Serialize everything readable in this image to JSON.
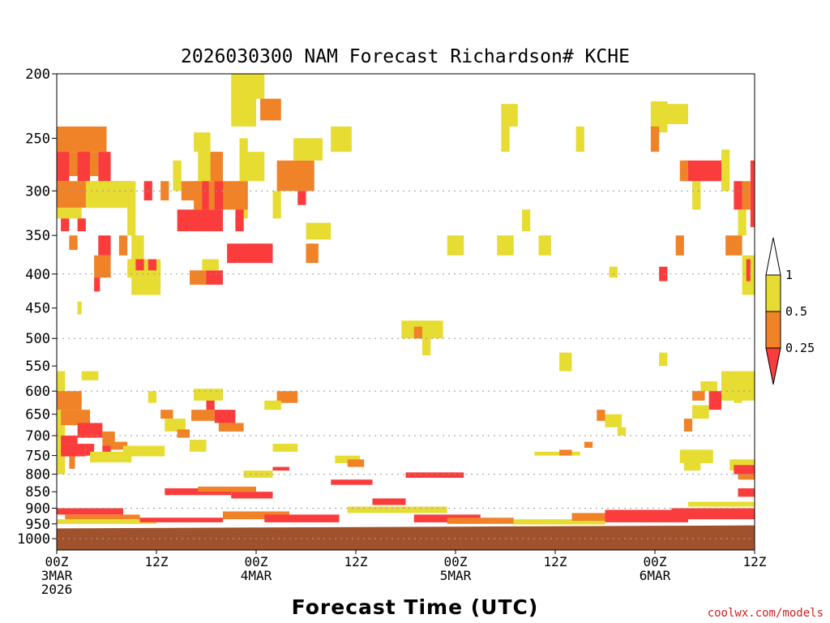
{
  "chart_data": {
    "type": "heatmap",
    "title": "2026030300 NAM Forecast Richardson# KCHE",
    "xlabel": "Forecast Time (UTC)",
    "credit": "coolwx.com/models",
    "ylabel": "",
    "x_range_hours": [
      0,
      84
    ],
    "y_range_hpa": [
      200,
      1040
    ],
    "y_scale": "log-pressure",
    "x_ticks": [
      {
        "hour": 0,
        "lines": [
          "00Z",
          "3MAR",
          "2026"
        ]
      },
      {
        "hour": 12,
        "lines": [
          "12Z"
        ]
      },
      {
        "hour": 24,
        "lines": [
          "00Z",
          "4MAR"
        ]
      },
      {
        "hour": 36,
        "lines": [
          "12Z"
        ]
      },
      {
        "hour": 48,
        "lines": [
          "00Z",
          "5MAR"
        ]
      },
      {
        "hour": 60,
        "lines": [
          "12Z"
        ]
      },
      {
        "hour": 72,
        "lines": [
          "00Z",
          "6MAR"
        ]
      },
      {
        "hour": 84,
        "lines": [
          "12Z"
        ]
      }
    ],
    "y_ticks": [
      200,
      250,
      300,
      350,
      400,
      450,
      500,
      550,
      600,
      650,
      700,
      750,
      800,
      850,
      900,
      950,
      1000
    ],
    "dotted_gridlines_hpa": [
      300,
      400,
      500,
      600,
      700,
      800,
      900,
      1000
    ],
    "legend": {
      "labels": [
        "1",
        "0.5",
        "0.25"
      ],
      "bins": [
        {
          "label": "> 1",
          "color": "#ffffff"
        },
        {
          "label": "0.5 - 1",
          "color": "#e6dc32"
        },
        {
          "label": "0.25 - 0.5",
          "color": "#f08228"
        },
        {
          "label": "< 0.25",
          "color": "#fa3c3c"
        }
      ]
    },
    "ground": {
      "color": "#a0522d",
      "top_hpa_start": 965,
      "top_hpa_end": 955
    },
    "colors": {
      "yellow": "#e6dc32",
      "orange": "#f08228",
      "red": "#fa3c3c"
    },
    "cells": [
      {
        "t0": 0,
        "t1": 6,
        "p0": 240,
        "p1": 262,
        "c": "orange"
      },
      {
        "t0": 0,
        "t1": 5,
        "p0": 262,
        "p1": 285,
        "c": "orange"
      },
      {
        "t0": 0,
        "t1": 1.5,
        "p0": 262,
        "p1": 290,
        "c": "red"
      },
      {
        "t0": 2.5,
        "t1": 4,
        "p0": 262,
        "p1": 290,
        "c": "red"
      },
      {
        "t0": 5,
        "t1": 6.5,
        "p0": 262,
        "p1": 290,
        "c": "red"
      },
      {
        "t0": 0,
        "t1": 9,
        "p0": 290,
        "p1": 318,
        "c": "orange"
      },
      {
        "t0": 3.5,
        "t1": 9,
        "p0": 290,
        "p1": 318,
        "c": "yellow"
      },
      {
        "t0": 8.5,
        "t1": 9.5,
        "p0": 290,
        "p1": 350,
        "c": "yellow"
      },
      {
        "t0": 0,
        "t1": 3,
        "p0": 318,
        "p1": 330,
        "c": "yellow"
      },
      {
        "t0": 0.5,
        "t1": 1.5,
        "p0": 330,
        "p1": 345,
        "c": "red"
      },
      {
        "t0": 2.5,
        "t1": 3.5,
        "p0": 330,
        "p1": 345,
        "c": "red"
      },
      {
        "t0": 1.5,
        "t1": 2.5,
        "p0": 350,
        "p1": 368,
        "c": "orange"
      },
      {
        "t0": 5,
        "t1": 6.5,
        "p0": 350,
        "p1": 375,
        "c": "red"
      },
      {
        "t0": 7.5,
        "t1": 8.5,
        "p0": 350,
        "p1": 375,
        "c": "orange"
      },
      {
        "t0": 9,
        "t1": 10.5,
        "p0": 350,
        "p1": 380,
        "c": "yellow"
      },
      {
        "t0": 4.5,
        "t1": 6.5,
        "p0": 375,
        "p1": 405,
        "c": "orange"
      },
      {
        "t0": 4.5,
        "t1": 5.2,
        "p0": 405,
        "p1": 425,
        "c": "red"
      },
      {
        "t0": 8.5,
        "t1": 12.5,
        "p0": 380,
        "p1": 405,
        "c": "yellow"
      },
      {
        "t0": 9.5,
        "t1": 10.5,
        "p0": 380,
        "p1": 395,
        "c": "red"
      },
      {
        "t0": 11,
        "t1": 12,
        "p0": 380,
        "p1": 395,
        "c": "red"
      },
      {
        "t0": 9,
        "t1": 12.5,
        "p0": 405,
        "p1": 430,
        "c": "yellow"
      },
      {
        "t0": 2.5,
        "t1": 3,
        "p0": 440,
        "p1": 460,
        "c": "yellow"
      },
      {
        "t0": 14,
        "t1": 15,
        "p0": 270,
        "p1": 300,
        "c": "yellow"
      },
      {
        "t0": 15,
        "t1": 17,
        "p0": 290,
        "p1": 310,
        "c": "orange"
      },
      {
        "t0": 10.5,
        "t1": 11.5,
        "p0": 290,
        "p1": 310,
        "c": "red"
      },
      {
        "t0": 12.5,
        "t1": 13.5,
        "p0": 290,
        "p1": 310,
        "c": "orange"
      },
      {
        "t0": 14.5,
        "t1": 20,
        "p0": 320,
        "p1": 345,
        "c": "red"
      },
      {
        "t0": 16.5,
        "t1": 19.5,
        "p0": 290,
        "p1": 320,
        "c": "orange"
      },
      {
        "t0": 17,
        "t1": 20,
        "p0": 262,
        "p1": 290,
        "c": "yellow"
      },
      {
        "t0": 18.5,
        "t1": 20,
        "p0": 262,
        "p1": 290,
        "c": "orange"
      },
      {
        "t0": 17.5,
        "t1": 18.3,
        "p0": 290,
        "p1": 320,
        "c": "red"
      },
      {
        "t0": 19,
        "t1": 20,
        "p0": 290,
        "p1": 320,
        "c": "red"
      },
      {
        "t0": 16.5,
        "t1": 18.5,
        "p0": 245,
        "p1": 262,
        "c": "yellow"
      },
      {
        "t0": 22,
        "t1": 23,
        "p0": 250,
        "p1": 330,
        "c": "yellow"
      },
      {
        "t0": 20,
        "t1": 23,
        "p0": 290,
        "p1": 320,
        "c": "orange"
      },
      {
        "t0": 21.5,
        "t1": 22.5,
        "p0": 320,
        "p1": 345,
        "c": "red"
      },
      {
        "t0": 20.5,
        "t1": 26,
        "p0": 360,
        "p1": 385,
        "c": "red"
      },
      {
        "t0": 22,
        "t1": 25,
        "p0": 262,
        "p1": 290,
        "c": "yellow"
      },
      {
        "t0": 16,
        "t1": 18,
        "p0": 395,
        "p1": 415,
        "c": "orange"
      },
      {
        "t0": 18,
        "t1": 20,
        "p0": 395,
        "p1": 415,
        "c": "red"
      },
      {
        "t0": 17.5,
        "t1": 19.5,
        "p0": 380,
        "p1": 395,
        "c": "yellow"
      },
      {
        "t0": 23,
        "t1": 25,
        "p0": 200,
        "p1": 218,
        "c": "yellow"
      },
      {
        "t0": 24.5,
        "t1": 27,
        "p0": 218,
        "p1": 235,
        "c": "orange"
      },
      {
        "t0": 26.5,
        "t1": 31,
        "p0": 270,
        "p1": 300,
        "c": "orange"
      },
      {
        "t0": 26,
        "t1": 27,
        "p0": 300,
        "p1": 330,
        "c": "yellow"
      },
      {
        "t0": 28.5,
        "t1": 32,
        "p0": 250,
        "p1": 270,
        "c": "yellow"
      },
      {
        "t0": 29,
        "t1": 30,
        "p0": 300,
        "p1": 315,
        "c": "red"
      },
      {
        "t0": 30,
        "t1": 33,
        "p0": 335,
        "p1": 355,
        "c": "yellow"
      },
      {
        "t0": 30,
        "t1": 31.5,
        "p0": 360,
        "p1": 385,
        "c": "orange"
      },
      {
        "t0": 33,
        "t1": 35.5,
        "p0": 240,
        "p1": 262,
        "c": "yellow"
      },
      {
        "t0": 21,
        "t1": 24,
        "p0": 200,
        "p1": 240,
        "c": "yellow"
      },
      {
        "t0": 3,
        "t1": 5,
        "p0": 560,
        "p1": 578,
        "c": "yellow"
      },
      {
        "t0": 0,
        "t1": 1,
        "p0": 560,
        "p1": 800,
        "c": "yellow"
      },
      {
        "t0": 0,
        "t1": 3,
        "p0": 600,
        "p1": 640,
        "c": "orange"
      },
      {
        "t0": 0.5,
        "t1": 4,
        "p0": 640,
        "p1": 675,
        "c": "orange"
      },
      {
        "t0": 2.5,
        "t1": 5.5,
        "p0": 670,
        "p1": 705,
        "c": "red"
      },
      {
        "t0": 0.5,
        "t1": 2.5,
        "p0": 700,
        "p1": 720,
        "c": "red"
      },
      {
        "t0": 0.5,
        "t1": 3.5,
        "p0": 720,
        "p1": 752,
        "c": "red"
      },
      {
        "t0": 5.5,
        "t1": 7,
        "p0": 690,
        "p1": 725,
        "c": "orange"
      },
      {
        "t0": 5.5,
        "t1": 6.5,
        "p0": 725,
        "p1": 755,
        "c": "red"
      },
      {
        "t0": 3.5,
        "t1": 4.5,
        "p0": 720,
        "p1": 750,
        "c": "red"
      },
      {
        "t0": 6.5,
        "t1": 8.5,
        "p0": 715,
        "p1": 735,
        "c": "orange"
      },
      {
        "t0": 4,
        "t1": 9,
        "p0": 740,
        "p1": 768,
        "c": "yellow"
      },
      {
        "t0": 8,
        "t1": 13,
        "p0": 725,
        "p1": 752,
        "c": "yellow"
      },
      {
        "t0": 1.5,
        "t1": 2.2,
        "p0": 752,
        "p1": 785,
        "c": "orange"
      },
      {
        "t0": 11,
        "t1": 12,
        "p0": 600,
        "p1": 625,
        "c": "yellow"
      },
      {
        "t0": 12.5,
        "t1": 14,
        "p0": 640,
        "p1": 660,
        "c": "orange"
      },
      {
        "t0": 13,
        "t1": 15.5,
        "p0": 660,
        "p1": 690,
        "c": "yellow"
      },
      {
        "t0": 14.5,
        "t1": 16,
        "p0": 685,
        "p1": 705,
        "c": "orange"
      },
      {
        "t0": 16.2,
        "t1": 19,
        "p0": 640,
        "p1": 665,
        "c": "orange"
      },
      {
        "t0": 18,
        "t1": 19,
        "p0": 600,
        "p1": 640,
        "c": "red"
      },
      {
        "t0": 19,
        "t1": 21.5,
        "p0": 640,
        "p1": 670,
        "c": "red"
      },
      {
        "t0": 19.5,
        "t1": 22.5,
        "p0": 670,
        "p1": 690,
        "c": "orange"
      },
      {
        "t0": 16.5,
        "t1": 20,
        "p0": 595,
        "p1": 620,
        "c": "yellow"
      },
      {
        "t0": 16,
        "t1": 18,
        "p0": 710,
        "p1": 740,
        "c": "yellow"
      },
      {
        "t0": 26.5,
        "t1": 29,
        "p0": 600,
        "p1": 625,
        "c": "orange"
      },
      {
        "t0": 25,
        "t1": 27,
        "p0": 620,
        "p1": 640,
        "c": "yellow"
      },
      {
        "t0": 26,
        "t1": 29,
        "p0": 720,
        "p1": 740,
        "c": "yellow"
      },
      {
        "t0": 33.5,
        "t1": 36.5,
        "p0": 750,
        "p1": 770,
        "c": "yellow"
      },
      {
        "t0": 35,
        "t1": 37,
        "p0": 760,
        "p1": 780,
        "c": "orange"
      },
      {
        "t0": 41.5,
        "t1": 46.5,
        "p0": 470,
        "p1": 500,
        "c": "yellow"
      },
      {
        "t0": 43,
        "t1": 44,
        "p0": 480,
        "p1": 500,
        "c": "orange"
      },
      {
        "t0": 44,
        "t1": 45,
        "p0": 495,
        "p1": 530,
        "c": "yellow"
      },
      {
        "t0": 22.5,
        "t1": 26,
        "p0": 790,
        "p1": 810,
        "c": "yellow"
      },
      {
        "t0": 26,
        "t1": 28,
        "p0": 780,
        "p1": 790,
        "c": "red"
      },
      {
        "t0": 53.5,
        "t1": 55.5,
        "p0": 222,
        "p1": 240,
        "c": "yellow"
      },
      {
        "t0": 53.5,
        "t1": 54.5,
        "p0": 240,
        "p1": 262,
        "c": "yellow"
      },
      {
        "t0": 47,
        "t1": 49,
        "p0": 350,
        "p1": 375,
        "c": "yellow"
      },
      {
        "t0": 53,
        "t1": 55,
        "p0": 350,
        "p1": 375,
        "c": "yellow"
      },
      {
        "t0": 58,
        "t1": 59.5,
        "p0": 350,
        "p1": 375,
        "c": "yellow"
      },
      {
        "t0": 56,
        "t1": 57,
        "p0": 320,
        "p1": 345,
        "c": "yellow"
      },
      {
        "t0": 60.5,
        "t1": 62,
        "p0": 525,
        "p1": 560,
        "c": "yellow"
      },
      {
        "t0": 62.5,
        "t1": 63.5,
        "p0": 240,
        "p1": 262,
        "c": "yellow"
      },
      {
        "t0": 66.5,
        "t1": 67.5,
        "p0": 390,
        "p1": 405,
        "c": "yellow"
      },
      {
        "t0": 65,
        "t1": 66,
        "p0": 640,
        "p1": 665,
        "c": "orange"
      },
      {
        "t0": 66,
        "t1": 68,
        "p0": 650,
        "p1": 680,
        "c": "yellow"
      },
      {
        "t0": 67.5,
        "t1": 68.5,
        "p0": 680,
        "p1": 700,
        "c": "yellow"
      },
      {
        "t0": 57.5,
        "t1": 63,
        "p0": 740,
        "p1": 750,
        "c": "yellow"
      },
      {
        "t0": 60.5,
        "t1": 62,
        "p0": 735,
        "p1": 750,
        "c": "orange"
      },
      {
        "t0": 63.5,
        "t1": 64.5,
        "p0": 715,
        "p1": 730,
        "c": "orange"
      },
      {
        "t0": 71.5,
        "t1": 73.5,
        "p0": 220,
        "p1": 245,
        "c": "yellow"
      },
      {
        "t0": 73,
        "t1": 76,
        "p0": 222,
        "p1": 238,
        "c": "yellow"
      },
      {
        "t0": 71.5,
        "t1": 72.5,
        "p0": 240,
        "p1": 262,
        "c": "orange"
      },
      {
        "t0": 75.5,
        "t1": 80,
        "p0": 270,
        "p1": 290,
        "c": "red"
      },
      {
        "t0": 75,
        "t1": 76,
        "p0": 270,
        "p1": 290,
        "c": "orange"
      },
      {
        "t0": 80,
        "t1": 81,
        "p0": 260,
        "p1": 300,
        "c": "yellow"
      },
      {
        "t0": 76.5,
        "t1": 77.5,
        "p0": 290,
        "p1": 320,
        "c": "yellow"
      },
      {
        "t0": 81.5,
        "t1": 82.5,
        "p0": 290,
        "p1": 320,
        "c": "red"
      },
      {
        "t0": 82.5,
        "t1": 83.5,
        "p0": 290,
        "p1": 320,
        "c": "orange"
      },
      {
        "t0": 83.5,
        "t1": 84,
        "p0": 270,
        "p1": 340,
        "c": "red"
      },
      {
        "t0": 82,
        "t1": 83,
        "p0": 320,
        "p1": 350,
        "c": "yellow"
      },
      {
        "t0": 80.5,
        "t1": 82.5,
        "p0": 350,
        "p1": 375,
        "c": "orange"
      },
      {
        "t0": 82.5,
        "t1": 84,
        "p0": 375,
        "p1": 430,
        "c": "yellow"
      },
      {
        "t0": 83,
        "t1": 83.5,
        "p0": 380,
        "p1": 410,
        "c": "red"
      },
      {
        "t0": 74.5,
        "t1": 75.5,
        "p0": 350,
        "p1": 375,
        "c": "orange"
      },
      {
        "t0": 72.5,
        "t1": 73.5,
        "p0": 390,
        "p1": 410,
        "c": "red"
      },
      {
        "t0": 72.5,
        "t1": 73.5,
        "p0": 525,
        "p1": 550,
        "c": "yellow"
      },
      {
        "t0": 80,
        "t1": 84,
        "p0": 560,
        "p1": 620,
        "c": "yellow"
      },
      {
        "t0": 77.5,
        "t1": 79.5,
        "p0": 580,
        "p1": 600,
        "c": "yellow"
      },
      {
        "t0": 78.5,
        "t1": 80,
        "p0": 600,
        "p1": 640,
        "c": "red"
      },
      {
        "t0": 76.5,
        "t1": 78,
        "p0": 600,
        "p1": 620,
        "c": "orange"
      },
      {
        "t0": 76.5,
        "t1": 78.5,
        "p0": 630,
        "p1": 660,
        "c": "yellow"
      },
      {
        "t0": 81.5,
        "t1": 82.5,
        "p0": 575,
        "p1": 625,
        "c": "yellow"
      },
      {
        "t0": 75.5,
        "t1": 76.5,
        "p0": 660,
        "p1": 690,
        "c": "orange"
      },
      {
        "t0": 75,
        "t1": 79,
        "p0": 735,
        "p1": 770,
        "c": "yellow"
      },
      {
        "t0": 75.5,
        "t1": 77.5,
        "p0": 770,
        "p1": 790,
        "c": "yellow"
      },
      {
        "t0": 81,
        "t1": 84,
        "p0": 760,
        "p1": 790,
        "c": "yellow"
      },
      {
        "t0": 81.5,
        "t1": 84,
        "p0": 775,
        "p1": 800,
        "c": "red"
      },
      {
        "t0": 82,
        "t1": 84,
        "p0": 800,
        "p1": 815,
        "c": "orange"
      },
      {
        "t0": 0,
        "t1": 8,
        "p0": 900,
        "p1": 920,
        "c": "red"
      },
      {
        "t0": 1,
        "t1": 10,
        "p0": 920,
        "p1": 935,
        "c": "orange"
      },
      {
        "t0": 0,
        "t1": 12,
        "p0": 935,
        "p1": 950,
        "c": "yellow"
      },
      {
        "t0": 10,
        "t1": 20,
        "p0": 930,
        "p1": 945,
        "c": "red"
      },
      {
        "t0": 13,
        "t1": 21,
        "p0": 840,
        "p1": 860,
        "c": "red"
      },
      {
        "t0": 17,
        "t1": 24,
        "p0": 835,
        "p1": 850,
        "c": "orange"
      },
      {
        "t0": 21,
        "t1": 26,
        "p0": 850,
        "p1": 870,
        "c": "red"
      },
      {
        "t0": 20,
        "t1": 28,
        "p0": 910,
        "p1": 935,
        "c": "orange"
      },
      {
        "t0": 25,
        "t1": 34,
        "p0": 920,
        "p1": 945,
        "c": "red"
      },
      {
        "t0": 33,
        "t1": 38,
        "p0": 815,
        "p1": 830,
        "c": "red"
      },
      {
        "t0": 38,
        "t1": 42,
        "p0": 870,
        "p1": 890,
        "c": "red"
      },
      {
        "t0": 42,
        "t1": 49,
        "p0": 795,
        "p1": 810,
        "c": "red"
      },
      {
        "t0": 43,
        "t1": 51,
        "p0": 920,
        "p1": 945,
        "c": "red"
      },
      {
        "t0": 35,
        "t1": 47,
        "p0": 895,
        "p1": 915,
        "c": "yellow"
      },
      {
        "t0": 47,
        "t1": 55,
        "p0": 930,
        "p1": 950,
        "c": "orange"
      },
      {
        "t0": 55,
        "t1": 66,
        "p0": 935,
        "p1": 952,
        "c": "yellow"
      },
      {
        "t0": 62,
        "t1": 72,
        "p0": 915,
        "p1": 940,
        "c": "orange"
      },
      {
        "t0": 66,
        "t1": 76,
        "p0": 905,
        "p1": 945,
        "c": "red"
      },
      {
        "t0": 74,
        "t1": 84,
        "p0": 900,
        "p1": 935,
        "c": "red"
      },
      {
        "t0": 76,
        "t1": 84,
        "p0": 880,
        "p1": 895,
        "c": "yellow"
      },
      {
        "t0": 82,
        "t1": 84,
        "p0": 840,
        "p1": 865,
        "c": "red"
      }
    ]
  }
}
